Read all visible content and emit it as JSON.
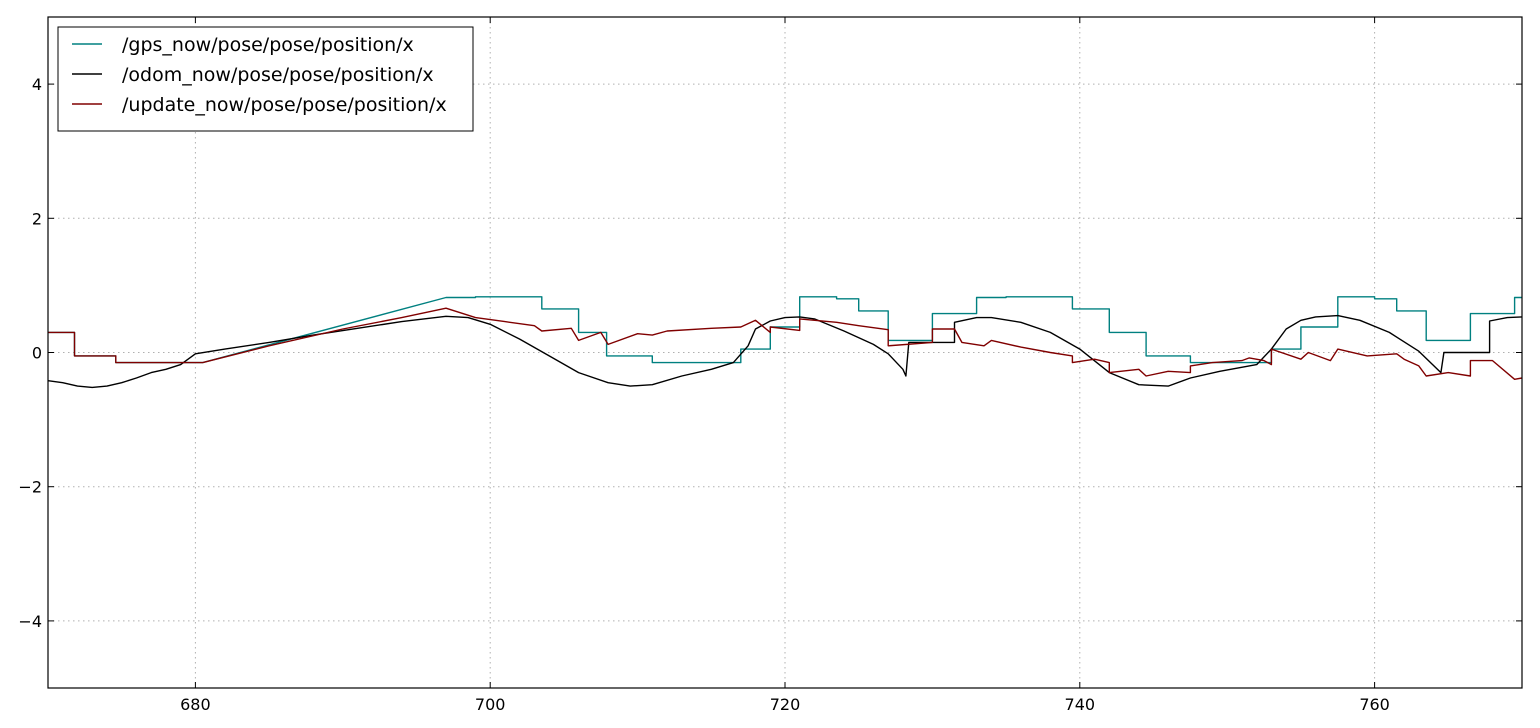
{
  "chart_data": {
    "type": "line",
    "title": "",
    "xlabel": "",
    "ylabel": "",
    "xlim": [
      670,
      770
    ],
    "ylim": [
      -5,
      5
    ],
    "xticks": [
      680,
      700,
      720,
      740,
      760
    ],
    "yticks": [
      -4,
      -2,
      0,
      2,
      4
    ],
    "ytick_labels": [
      "−4",
      "−2",
      "0",
      "2",
      "4"
    ],
    "grid": true,
    "legend_position": "top-left",
    "series": [
      {
        "name": "/gps_now/pose/pose/position/x",
        "color": "#008080",
        "points": [
          [
            670,
            0.3
          ],
          [
            671.8,
            0.3
          ],
          [
            671.8,
            -0.05
          ],
          [
            674.6,
            -0.05
          ],
          [
            674.6,
            -0.15
          ],
          [
            680.5,
            -0.15
          ],
          [
            697,
            0.82
          ],
          [
            699,
            0.82
          ],
          [
            699,
            0.83
          ],
          [
            703.5,
            0.83
          ],
          [
            703.5,
            0.65
          ],
          [
            706,
            0.65
          ],
          [
            706,
            0.3
          ],
          [
            707.9,
            0.3
          ],
          [
            707.9,
            -0.05
          ],
          [
            711,
            -0.05
          ],
          [
            711,
            -0.15
          ],
          [
            717,
            -0.15
          ],
          [
            717,
            0.05
          ],
          [
            719,
            0.05
          ],
          [
            719,
            0.38
          ],
          [
            721,
            0.38
          ],
          [
            721,
            0.83
          ],
          [
            723.5,
            0.83
          ],
          [
            723.5,
            0.8
          ],
          [
            725,
            0.8
          ],
          [
            725,
            0.62
          ],
          [
            727,
            0.62
          ],
          [
            727,
            0.18
          ],
          [
            730,
            0.18
          ],
          [
            730,
            0.58
          ],
          [
            733,
            0.58
          ],
          [
            733,
            0.82
          ],
          [
            735,
            0.82
          ],
          [
            735,
            0.83
          ],
          [
            739.5,
            0.83
          ],
          [
            739.5,
            0.65
          ],
          [
            742,
            0.65
          ],
          [
            742,
            0.3
          ],
          [
            744.5,
            0.3
          ],
          [
            744.5,
            -0.05
          ],
          [
            747.5,
            -0.05
          ],
          [
            747.5,
            -0.15
          ],
          [
            753,
            -0.15
          ],
          [
            753,
            0.05
          ],
          [
            755,
            0.05
          ],
          [
            755,
            0.38
          ],
          [
            757.5,
            0.38
          ],
          [
            757.5,
            0.83
          ],
          [
            760,
            0.83
          ],
          [
            760,
            0.8
          ],
          [
            761.5,
            0.8
          ],
          [
            761.5,
            0.62
          ],
          [
            763.5,
            0.62
          ],
          [
            763.5,
            0.18
          ],
          [
            766.5,
            0.18
          ],
          [
            766.5,
            0.58
          ],
          [
            769.5,
            0.58
          ],
          [
            769.5,
            0.82
          ],
          [
            770,
            0.82
          ]
        ]
      },
      {
        "name": "/odom_now/pose/pose/position/x",
        "color": "#000000",
        "points": [
          [
            670,
            -0.42
          ],
          [
            671,
            -0.45
          ],
          [
            672,
            -0.5
          ],
          [
            673,
            -0.52
          ],
          [
            674,
            -0.5
          ],
          [
            675,
            -0.45
          ],
          [
            676,
            -0.38
          ],
          [
            677,
            -0.3
          ],
          [
            678,
            -0.25
          ],
          [
            679,
            -0.18
          ],
          [
            680,
            -0.02
          ],
          [
            682,
            0.05
          ],
          [
            685,
            0.15
          ],
          [
            688,
            0.26
          ],
          [
            691,
            0.36
          ],
          [
            694,
            0.46
          ],
          [
            697,
            0.54
          ],
          [
            698.5,
            0.52
          ],
          [
            700,
            0.42
          ],
          [
            702,
            0.2
          ],
          [
            704,
            -0.05
          ],
          [
            706,
            -0.3
          ],
          [
            708,
            -0.45
          ],
          [
            709.5,
            -0.5
          ],
          [
            711,
            -0.48
          ],
          [
            713,
            -0.35
          ],
          [
            715,
            -0.25
          ],
          [
            716.5,
            -0.15
          ],
          [
            717.5,
            0.1
          ],
          [
            718,
            0.35
          ],
          [
            719,
            0.47
          ],
          [
            720,
            0.52
          ],
          [
            721,
            0.53
          ],
          [
            722,
            0.5
          ],
          [
            724,
            0.32
          ],
          [
            726,
            0.12
          ],
          [
            727,
            -0.02
          ],
          [
            728,
            -0.25
          ],
          [
            728.2,
            -0.35
          ],
          [
            728.4,
            0.15
          ],
          [
            730,
            0.15
          ],
          [
            731.5,
            0.15
          ],
          [
            731.5,
            0.45
          ],
          [
            733,
            0.52
          ],
          [
            734,
            0.52
          ],
          [
            736,
            0.45
          ],
          [
            738,
            0.3
          ],
          [
            740,
            0.05
          ],
          [
            742,
            -0.3
          ],
          [
            744,
            -0.48
          ],
          [
            746,
            -0.5
          ],
          [
            747.5,
            -0.38
          ],
          [
            749.5,
            -0.28
          ],
          [
            752,
            -0.18
          ],
          [
            753,
            0.05
          ],
          [
            754,
            0.35
          ],
          [
            755,
            0.48
          ],
          [
            756,
            0.53
          ],
          [
            757.5,
            0.55
          ],
          [
            759,
            0.48
          ],
          [
            761,
            0.3
          ],
          [
            763,
            0.02
          ],
          [
            764.5,
            -0.3
          ],
          [
            764.7,
            0.0
          ],
          [
            767.8,
            0.0
          ],
          [
            767.8,
            0.47
          ],
          [
            769,
            0.52
          ],
          [
            770,
            0.53
          ]
        ]
      },
      {
        "name": "/update_now/pose/pose/position/x",
        "color": "#800000",
        "points": [
          [
            670,
            0.3
          ],
          [
            671.8,
            0.3
          ],
          [
            671.8,
            -0.05
          ],
          [
            674.6,
            -0.05
          ],
          [
            674.6,
            -0.15
          ],
          [
            680.5,
            -0.15
          ],
          [
            685,
            0.1
          ],
          [
            690,
            0.35
          ],
          [
            694,
            0.52
          ],
          [
            697,
            0.66
          ],
          [
            699,
            0.52
          ],
          [
            701,
            0.46
          ],
          [
            703,
            0.4
          ],
          [
            703.5,
            0.32
          ],
          [
            705.5,
            0.36
          ],
          [
            706,
            0.18
          ],
          [
            707.5,
            0.3
          ],
          [
            708,
            0.12
          ],
          [
            710,
            0.28
          ],
          [
            711,
            0.26
          ],
          [
            712,
            0.32
          ],
          [
            715,
            0.36
          ],
          [
            717,
            0.38
          ],
          [
            718,
            0.48
          ],
          [
            719,
            0.3
          ],
          [
            719,
            0.38
          ],
          [
            721,
            0.33
          ],
          [
            721,
            0.5
          ],
          [
            723.5,
            0.45
          ],
          [
            725,
            0.4
          ],
          [
            727,
            0.34
          ],
          [
            727,
            0.1
          ],
          [
            730,
            0.15
          ],
          [
            730,
            0.35
          ],
          [
            731.5,
            0.35
          ],
          [
            732,
            0.15
          ],
          [
            733.5,
            0.1
          ],
          [
            734,
            0.18
          ],
          [
            736,
            0.08
          ],
          [
            738,
            0.0
          ],
          [
            739.5,
            -0.05
          ],
          [
            739.5,
            -0.15
          ],
          [
            741,
            -0.1
          ],
          [
            742,
            -0.15
          ],
          [
            742,
            -0.3
          ],
          [
            744,
            -0.25
          ],
          [
            744.5,
            -0.35
          ],
          [
            746,
            -0.28
          ],
          [
            747.5,
            -0.3
          ],
          [
            747.5,
            -0.2
          ],
          [
            749,
            -0.15
          ],
          [
            751,
            -0.12
          ],
          [
            751.5,
            -0.08
          ],
          [
            752.5,
            -0.12
          ],
          [
            753,
            -0.18
          ],
          [
            753,
            0.05
          ],
          [
            755,
            -0.1
          ],
          [
            755.5,
            0.0
          ],
          [
            757,
            -0.12
          ],
          [
            757.5,
            0.05
          ],
          [
            759.5,
            -0.05
          ],
          [
            761.5,
            -0.02
          ],
          [
            762,
            -0.1
          ],
          [
            763,
            -0.2
          ],
          [
            763.5,
            -0.35
          ],
          [
            765,
            -0.3
          ],
          [
            766.5,
            -0.35
          ],
          [
            766.5,
            -0.12
          ],
          [
            768,
            -0.12
          ],
          [
            769.5,
            -0.4
          ],
          [
            770,
            -0.38
          ]
        ]
      }
    ]
  }
}
